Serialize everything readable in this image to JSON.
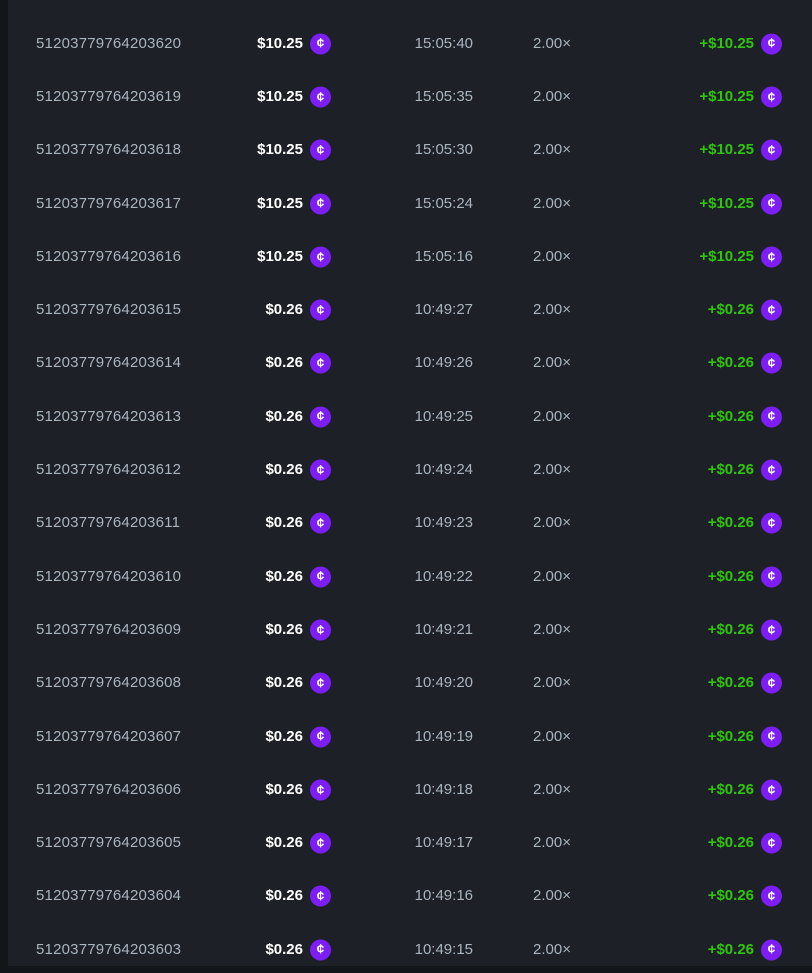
{
  "colors": {
    "page_bg": "#12151a",
    "panel_bg": "#1d2127",
    "text_secondary": "#a9b4bf",
    "text_primary": "#ffffff",
    "win_green": "#30c40e",
    "coin_purple": "#7c1ef5"
  },
  "icons": {
    "coin_glyph": "¢",
    "coin_name": "stake-cash-coin-icon"
  },
  "table": {
    "columns": [
      "bet-id",
      "bet-amount",
      "time",
      "multiplier",
      "payout"
    ],
    "rows": [
      {
        "id": "51203779764203620",
        "bet": "$10.25",
        "time": "15:05:40",
        "multiplier": "2.00×",
        "payout": "+$10.25"
      },
      {
        "id": "51203779764203619",
        "bet": "$10.25",
        "time": "15:05:35",
        "multiplier": "2.00×",
        "payout": "+$10.25"
      },
      {
        "id": "51203779764203618",
        "bet": "$10.25",
        "time": "15:05:30",
        "multiplier": "2.00×",
        "payout": "+$10.25"
      },
      {
        "id": "51203779764203617",
        "bet": "$10.25",
        "time": "15:05:24",
        "multiplier": "2.00×",
        "payout": "+$10.25"
      },
      {
        "id": "51203779764203616",
        "bet": "$10.25",
        "time": "15:05:16",
        "multiplier": "2.00×",
        "payout": "+$10.25"
      },
      {
        "id": "51203779764203615",
        "bet": "$0.26",
        "time": "10:49:27",
        "multiplier": "2.00×",
        "payout": "+$0.26"
      },
      {
        "id": "51203779764203614",
        "bet": "$0.26",
        "time": "10:49:26",
        "multiplier": "2.00×",
        "payout": "+$0.26"
      },
      {
        "id": "51203779764203613",
        "bet": "$0.26",
        "time": "10:49:25",
        "multiplier": "2.00×",
        "payout": "+$0.26"
      },
      {
        "id": "51203779764203612",
        "bet": "$0.26",
        "time": "10:49:24",
        "multiplier": "2.00×",
        "payout": "+$0.26"
      },
      {
        "id": "51203779764203611",
        "bet": "$0.26",
        "time": "10:49:23",
        "multiplier": "2.00×",
        "payout": "+$0.26"
      },
      {
        "id": "51203779764203610",
        "bet": "$0.26",
        "time": "10:49:22",
        "multiplier": "2.00×",
        "payout": "+$0.26"
      },
      {
        "id": "51203779764203609",
        "bet": "$0.26",
        "time": "10:49:21",
        "multiplier": "2.00×",
        "payout": "+$0.26"
      },
      {
        "id": "51203779764203608",
        "bet": "$0.26",
        "time": "10:49:20",
        "multiplier": "2.00×",
        "payout": "+$0.26"
      },
      {
        "id": "51203779764203607",
        "bet": "$0.26",
        "time": "10:49:19",
        "multiplier": "2.00×",
        "payout": "+$0.26"
      },
      {
        "id": "51203779764203606",
        "bet": "$0.26",
        "time": "10:49:18",
        "multiplier": "2.00×",
        "payout": "+$0.26"
      },
      {
        "id": "51203779764203605",
        "bet": "$0.26",
        "time": "10:49:17",
        "multiplier": "2.00×",
        "payout": "+$0.26"
      },
      {
        "id": "51203779764203604",
        "bet": "$0.26",
        "time": "10:49:16",
        "multiplier": "2.00×",
        "payout": "+$0.26"
      },
      {
        "id": "51203779764203603",
        "bet": "$0.26",
        "time": "10:49:15",
        "multiplier": "2.00×",
        "payout": "+$0.26"
      }
    ]
  }
}
